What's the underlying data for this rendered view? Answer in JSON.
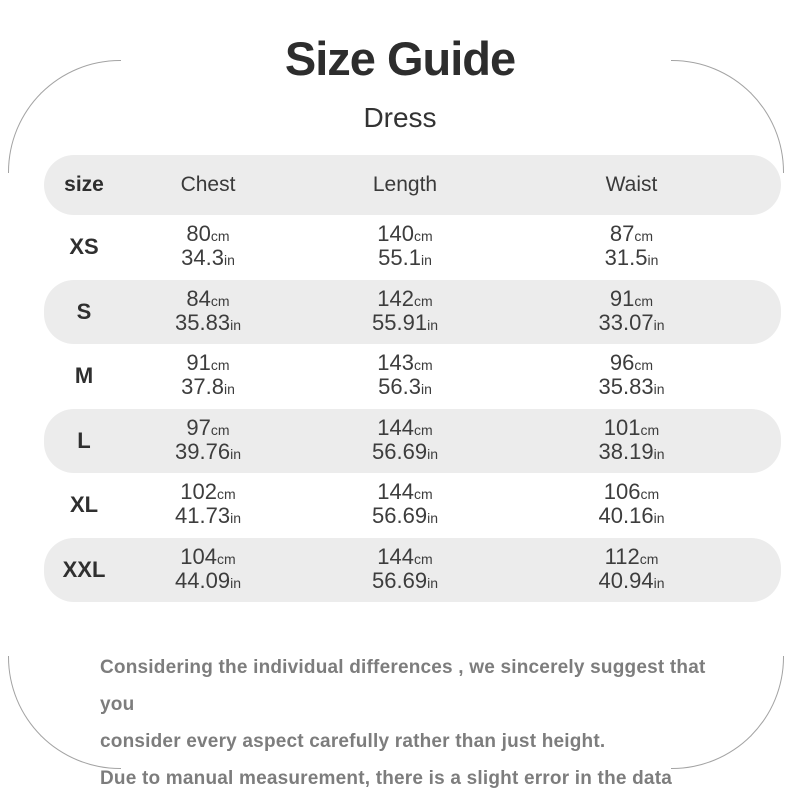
{
  "title": "Size Guide",
  "subtitle": "Dress",
  "table": {
    "headers": {
      "size": "size",
      "chest": "Chest",
      "length": "Length",
      "waist": "Waist"
    },
    "units": {
      "cm": "cm",
      "in": "in"
    },
    "rows": [
      {
        "label": "XS",
        "chest_cm": "80",
        "chest_in": "34.3",
        "length_cm": "140",
        "length_in": "55.1",
        "waist_cm": "87",
        "waist_in": "31.5"
      },
      {
        "label": "S",
        "chest_cm": "84",
        "chest_in": "35.83",
        "length_cm": "142",
        "length_in": "55.91",
        "waist_cm": "91",
        "waist_in": "33.07"
      },
      {
        "label": "M",
        "chest_cm": "91",
        "chest_in": "37.8",
        "length_cm": "143",
        "length_in": "56.3",
        "waist_cm": "96",
        "waist_in": "35.83"
      },
      {
        "label": "L",
        "chest_cm": "97",
        "chest_in": "39.76",
        "length_cm": "144",
        "length_in": "56.69",
        "waist_cm": "101",
        "waist_in": "38.19"
      },
      {
        "label": "XL",
        "chest_cm": "102",
        "chest_in": "41.73",
        "length_cm": "144",
        "length_in": "56.69",
        "waist_cm": "106",
        "waist_in": "40.16"
      },
      {
        "label": "XXL",
        "chest_cm": "104",
        "chest_in": "44.09",
        "length_cm": "144",
        "length_in": "56.69",
        "waist_cm": "112",
        "waist_in": "40.94"
      }
    ]
  },
  "footer": {
    "line1": "Considering the individual differences , we sincerely suggest that you",
    "line2": "consider every aspect carefully rather than just height.",
    "line3": "Due to manual measurement, there is a slight error in the data"
  },
  "colors": {
    "row_shade": "#ececec",
    "title_text": "#2d2d2d",
    "value_text": "#3d3d3d",
    "footer_text": "#7d7d7d",
    "corner_arc": "#a3a3a3"
  }
}
